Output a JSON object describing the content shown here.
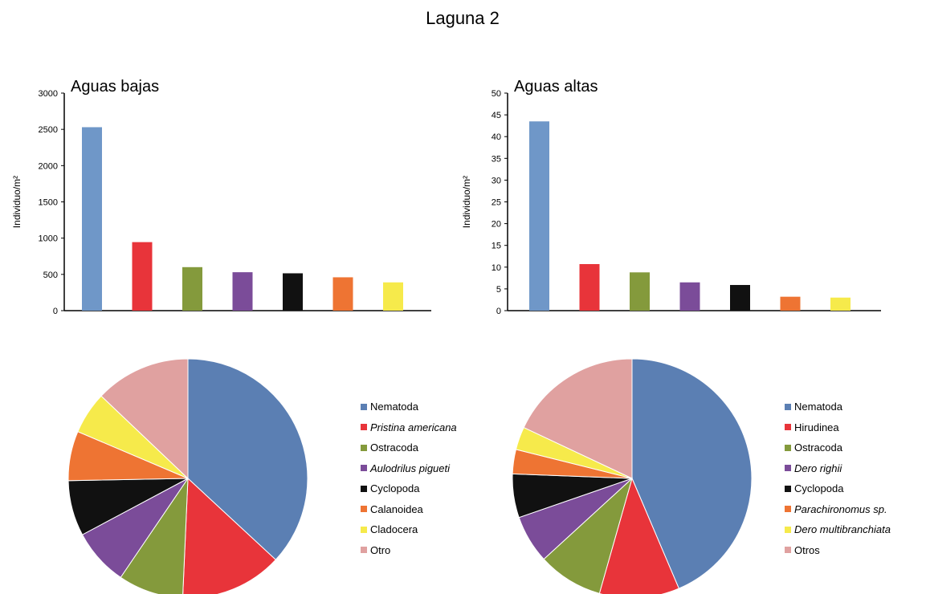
{
  "title": "Laguna 2",
  "chart_data": [
    {
      "type": "bar",
      "title": "Aguas bajas",
      "ylabel": "Individuo/m²",
      "ylim": [
        0,
        3000
      ],
      "yticks": [
        "0",
        "500",
        "1000",
        "1500",
        "2000",
        "2500",
        "3000"
      ],
      "categories": [
        "Nematoda",
        "Pristina americana",
        "Ostracoda",
        "Aulodrilus pigueti",
        "Cyclopoda",
        "Calanoidea",
        "Cladocera"
      ],
      "values": [
        2530,
        945,
        600,
        530,
        515,
        460,
        390
      ],
      "colors": [
        "#6f97c8",
        "#e8343a",
        "#849a3c",
        "#7b4c99",
        "#111111",
        "#ee7433",
        "#f6ea4b"
      ]
    },
    {
      "type": "bar",
      "title": "Aguas altas",
      "ylabel": "Individuo/m²",
      "ylim": [
        0,
        50
      ],
      "yticks": [
        "0",
        "5",
        "10",
        "15",
        "20",
        "25",
        "30",
        "35",
        "40",
        "45",
        "50"
      ],
      "categories": [
        "Nematoda",
        "Hirudinea",
        "Ostracoda",
        "Dero righii",
        "Cyclopoda",
        "Parachironomus sp.",
        "Dero multibranchiata"
      ],
      "values": [
        43.5,
        10.7,
        8.8,
        6.5,
        5.9,
        3.2,
        3.0
      ],
      "colors": [
        "#6f97c8",
        "#e8343a",
        "#849a3c",
        "#7b4c99",
        "#111111",
        "#ee7433",
        "#f6ea4b"
      ]
    },
    {
      "type": "pie",
      "labels": [
        "Nematoda",
        "Pristina americana",
        "Ostracoda",
        "Aulodrilus pigueti",
        "Cyclopoda",
        "Calanoidea",
        "Cladocera",
        "Otro"
      ],
      "italic": [
        false,
        true,
        false,
        true,
        false,
        false,
        false,
        false
      ],
      "values": [
        36.9,
        13.8,
        8.8,
        7.7,
        7.5,
        6.7,
        5.7,
        12.9
      ],
      "colors": [
        "#5b7fb3",
        "#e8343a",
        "#849a3c",
        "#7b4c99",
        "#111111",
        "#ee7433",
        "#f6ea4b",
        "#e0a1a0"
      ],
      "legend": "right"
    },
    {
      "type": "pie",
      "labels": [
        "Nematoda",
        "Hirudinea",
        "Ostracoda",
        "Dero righii",
        "Cyclopoda",
        "Parachironomus sp.",
        "Dero multibranchiata",
        "Otros"
      ],
      "italic": [
        false,
        false,
        false,
        true,
        false,
        true,
        true,
        false
      ],
      "values": [
        43.6,
        10.8,
        8.8,
        6.5,
        5.9,
        3.3,
        3.1,
        18.0
      ],
      "colors": [
        "#5b7fb3",
        "#e8343a",
        "#849a3c",
        "#7b4c99",
        "#111111",
        "#ee7433",
        "#f6ea4b",
        "#e0a1a0"
      ],
      "legend": "right"
    }
  ]
}
